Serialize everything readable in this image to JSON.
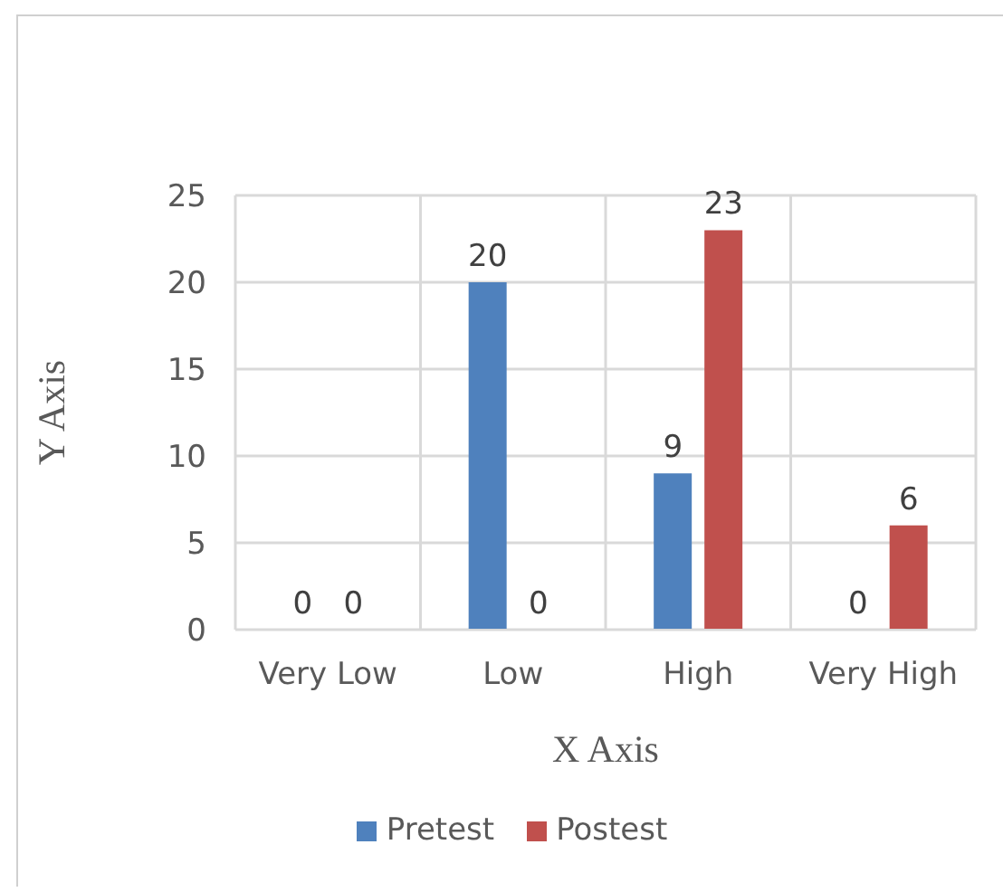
{
  "chart_data": {
    "type": "bar",
    "xlabel": "X Axis",
    "ylabel": "Y Axis",
    "categories": [
      "Very Low",
      "Low",
      "High",
      "Very High"
    ],
    "series": [
      {
        "name": "Pretest",
        "color": "#4f81bd",
        "values": [
          0,
          20,
          9,
          0
        ]
      },
      {
        "name": "Postest",
        "color": "#c0504d",
        "values": [
          0,
          0,
          23,
          6
        ]
      }
    ],
    "ylim": [
      0,
      25
    ],
    "yticks": [
      0,
      5,
      10,
      15,
      20,
      25
    ],
    "grid": true,
    "legend": "bottom",
    "data_labels": true
  }
}
